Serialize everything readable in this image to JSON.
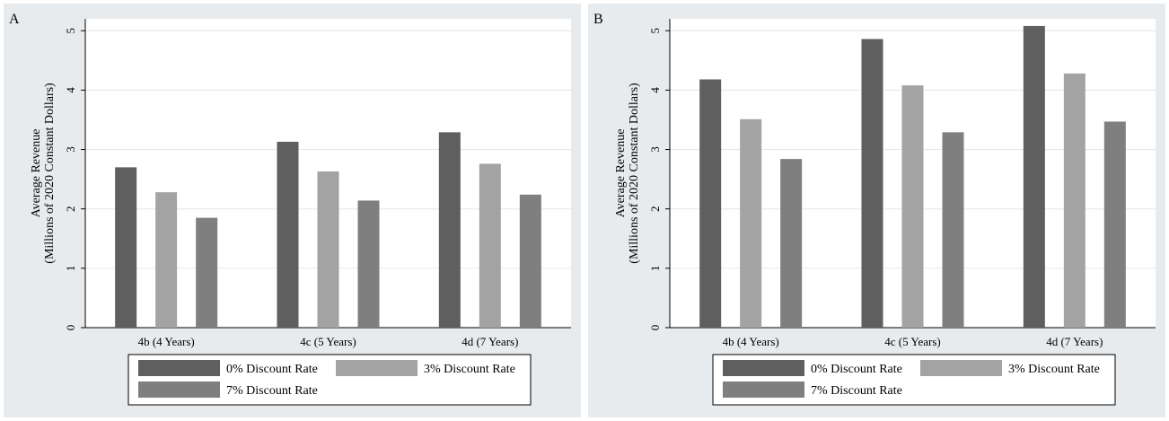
{
  "chart_data": [
    {
      "type": "bar",
      "panel_label": "A",
      "categories": [
        "4b (4 Years)",
        "4c (5 Years)",
        "4d (7 Years)"
      ],
      "series": [
        {
          "name": "0% Discount Rate",
          "values": [
            2.7,
            3.13,
            3.29
          ],
          "color": "#5f5f5f"
        },
        {
          "name": "3% Discount Rate",
          "values": [
            2.28,
            2.63,
            2.76
          ],
          "color": "#a3a3a3"
        },
        {
          "name": "7% Discount Rate",
          "values": [
            1.85,
            2.14,
            2.24
          ],
          "color": "#7f7f7f"
        }
      ],
      "ylabel_lines": [
        "Average Revenue",
        "(Millions of 2020 Constant Dollars)"
      ],
      "yticks": [
        0,
        1,
        2,
        3,
        4,
        5
      ],
      "ylim": [
        0,
        5.2
      ],
      "grid": true,
      "legend_position": "bottom"
    },
    {
      "type": "bar",
      "panel_label": "B",
      "categories": [
        "4b (4 Years)",
        "4c (5 Years)",
        "4d (7 Years)"
      ],
      "series": [
        {
          "name": "0% Discount Rate",
          "values": [
            4.18,
            4.86,
            5.08
          ],
          "color": "#5f5f5f"
        },
        {
          "name": "3% Discount Rate",
          "values": [
            3.51,
            4.08,
            4.28
          ],
          "color": "#a3a3a3"
        },
        {
          "name": "7% Discount Rate",
          "values": [
            2.84,
            3.29,
            3.47
          ],
          "color": "#7f7f7f"
        }
      ],
      "ylabel_lines": [
        "Average Revenue",
        "(Millions of 2020 Constant Dollars)"
      ],
      "yticks": [
        0,
        1,
        2,
        3,
        4,
        5
      ],
      "ylim": [
        0,
        5.2
      ],
      "grid": true,
      "legend_position": "bottom"
    }
  ]
}
